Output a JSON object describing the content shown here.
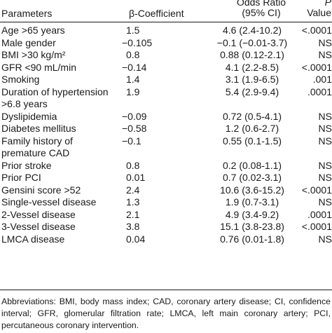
{
  "header": {
    "parameters": "Parameters",
    "beta": "β-Coefficient",
    "or_line1": "Odds Ratio",
    "or_line2": "(95% CI)",
    "p_line1": "P",
    "p_line2": "Value"
  },
  "rows": [
    {
      "param": "Age >65 years",
      "beta": "1.5",
      "or": "4.6 (2.4-10.2)",
      "p": "<.0001"
    },
    {
      "param": "Male gender",
      "beta": "−0.105",
      "or": "−0.1 (−0.01-3.7)",
      "p": "NS"
    },
    {
      "param": "BMI >30 kg/m²",
      "beta": "0.8",
      "or": "0.88 (0.12-2.1)",
      "p": "NS"
    },
    {
      "param": "GFR <90 mL/min",
      "beta": "−0.14",
      "or": "4.1 (2.2-8.5)",
      "p": "<.0001"
    },
    {
      "param": "Smoking",
      "beta": "1.4",
      "or": "3.1 (1.9-6.5)",
      "p": ".001"
    },
    {
      "param": "Duration of hypertension",
      "param2": ">6.8 years",
      "beta": "1.9",
      "or": "5.4 (2.9-9.4)",
      "p": ".0001"
    },
    {
      "param": "Dyslipidemia",
      "beta": "−0.09",
      "or": "0.72 (0.5-4.1)",
      "p": "NS"
    },
    {
      "param": "Diabetes mellitus",
      "beta": "−0.58",
      "or": "1.2 (0.6-2.7)",
      "p": "NS"
    },
    {
      "param": "Family history of",
      "param2": "premature CAD",
      "beta": "−0.1",
      "or": "0.55 (0.1-1.5)",
      "p": "NS"
    },
    {
      "param": "Prior stroke",
      "beta": "0.8",
      "or": "0.2 (0.08-1.1)",
      "p": "NS"
    },
    {
      "param": "Prior PCI",
      "beta": "0.01",
      "or": "0.7 (0.02-3.1)",
      "p": "NS"
    },
    {
      "param": "Gensini score >52",
      "beta": "2.4",
      "or": "10.6 (3.6-15.2)",
      "p": "<.0001"
    },
    {
      "param": "Single-vessel disease",
      "beta": "1.3",
      "or": "1.9 (0.7-3.1)",
      "p": "NS"
    },
    {
      "param": "2-Vessel disease",
      "beta": "2.1",
      "or": "4.9 (3.4-9.2)",
      "p": ".0001"
    },
    {
      "param": "3-Vessel disease",
      "beta": "3.8",
      "or": "15.1 (3.8-23.8)",
      "p": "<.0001"
    },
    {
      "param": "LMCA disease",
      "beta": "0.04",
      "or": "0.76 (0.01-1.8)",
      "p": "NS"
    }
  ],
  "footnote": "Abbreviations: BMI, body mass index; CAD, coronary artery disease; CI, confidence interval; GFR, glomerular filtration rate; LMCA, left main coronary artery; PCI, percutaneous coronary intervention."
}
